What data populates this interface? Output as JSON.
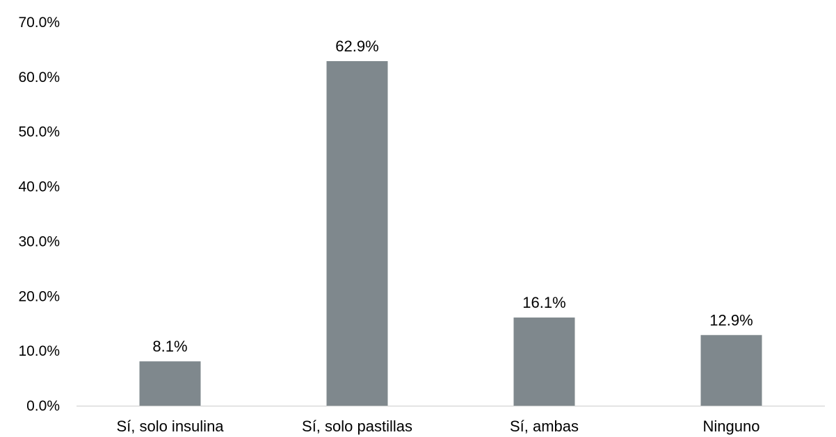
{
  "chart_data": {
    "type": "bar",
    "categories": [
      "Sí, solo insulina",
      "Sí, solo pastillas",
      "Sí, ambas",
      "Ninguno"
    ],
    "values": [
      8.1,
      62.9,
      16.1,
      12.9
    ],
    "data_labels": [
      "8.1%",
      "62.9%",
      "16.1%",
      "12.9%"
    ],
    "title": "",
    "xlabel": "",
    "ylabel": "",
    "ylim": [
      0,
      70
    ],
    "y_ticks": [
      0,
      10,
      20,
      30,
      40,
      50,
      60,
      70
    ],
    "y_tick_labels": [
      "0.0%",
      "10.0%",
      "20.0%",
      "30.0%",
      "40.0%",
      "50.0%",
      "60.0%",
      "70.0%"
    ],
    "grid": false,
    "legend": "none",
    "colors": {
      "bar": "#7f888d",
      "axis": "#d9d9d9",
      "text": "#000000"
    }
  }
}
